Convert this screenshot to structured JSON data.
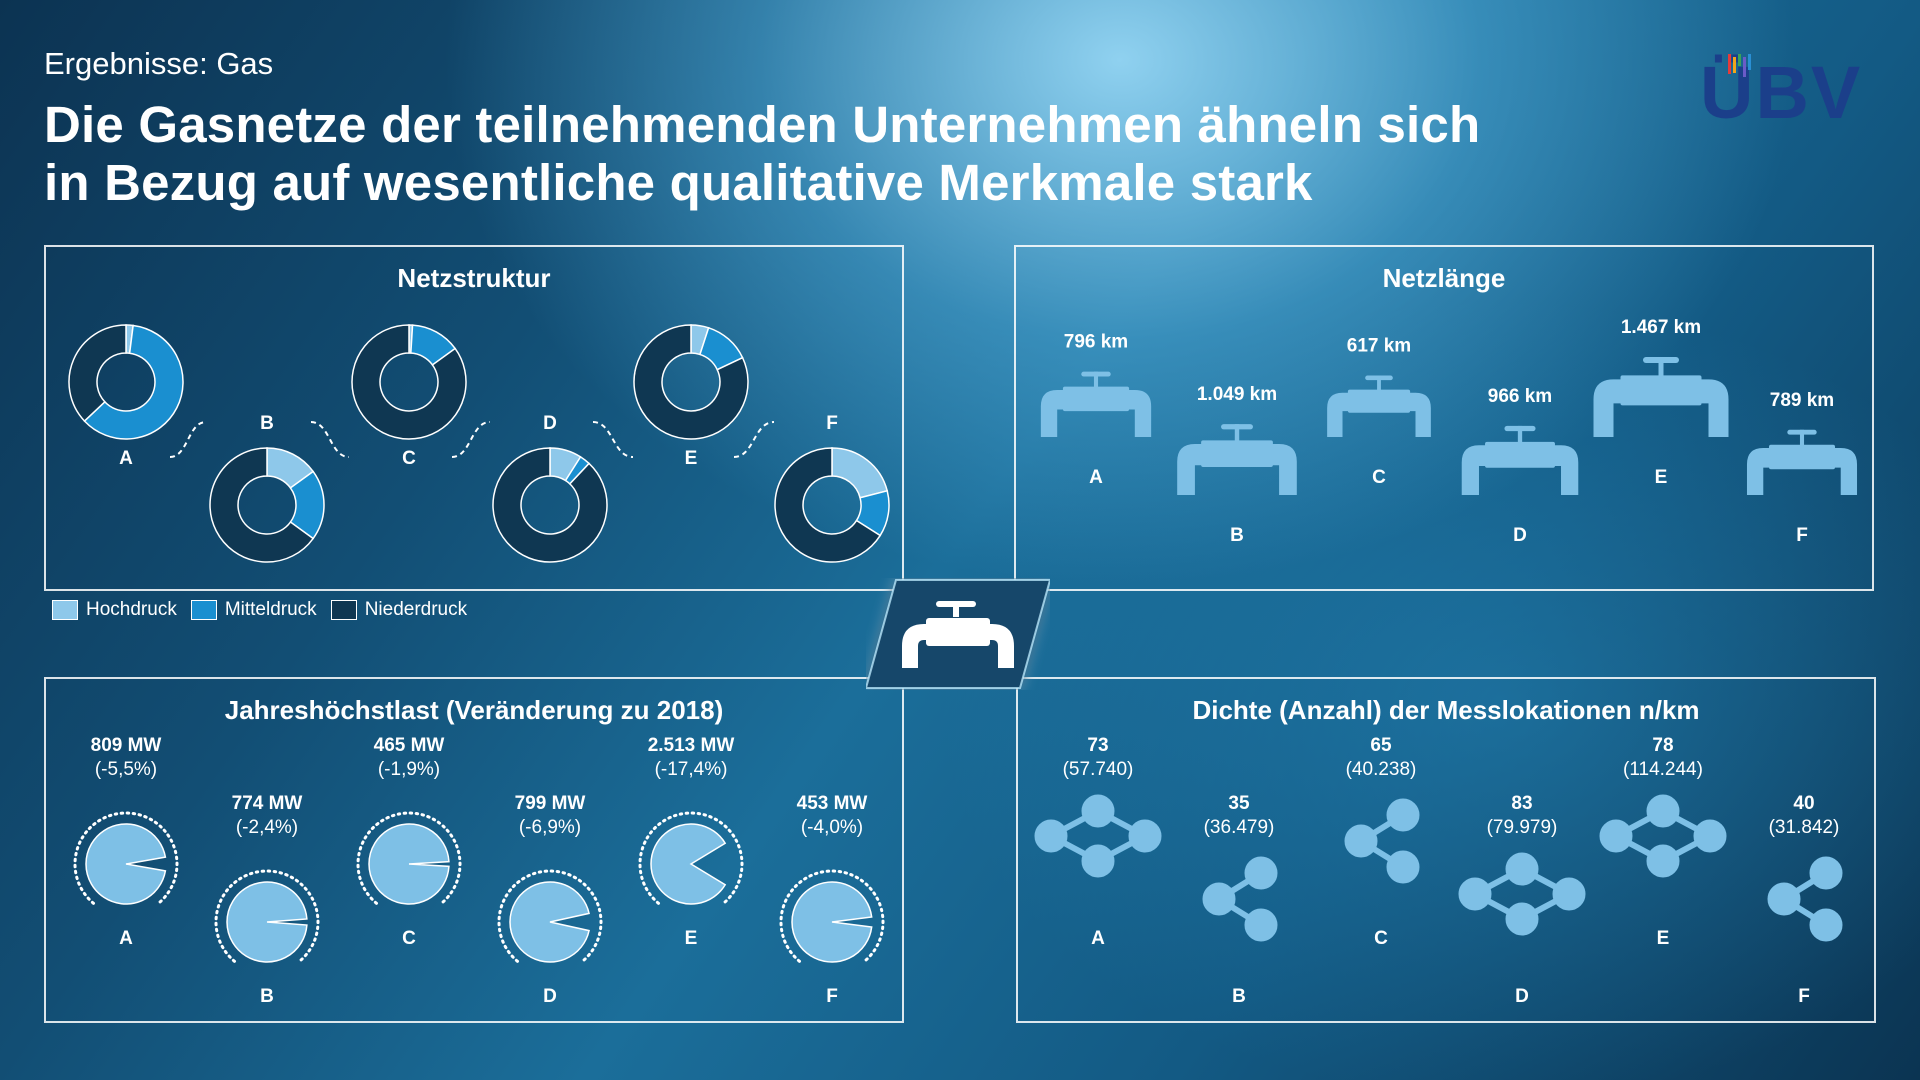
{
  "header": {
    "subtitle": "Ergebnisse: Gas",
    "title_line1": "Die Gasnetze der teilnehmenden Unternehmen ähneln sich",
    "title_line2": "in Bezug auf wesentliche qualitative Merkmale stark"
  },
  "logo": {
    "text": "ÜBV",
    "color": "#1b3f8a",
    "bar_colors": [
      "#e43b3b",
      "#f2a51a",
      "#3aa35a",
      "#6a5bc8",
      "#2a8fd4"
    ]
  },
  "colors": {
    "hochdruck": "#8ec8ea",
    "mitteldruck": "#1a8fd0",
    "niederdruck": "#0f3752",
    "icon": "#7ec0e6"
  },
  "legend": [
    "Hochdruck",
    "Mitteldruck",
    "Niederdruck"
  ],
  "chart_data": [
    {
      "type": "pie",
      "title": "Netzstruktur",
      "series_names": [
        "Hochdruck",
        "Mitteldruck",
        "Niederdruck"
      ],
      "items": [
        {
          "label": "A",
          "values": [
            2,
            61,
            37
          ]
        },
        {
          "label": "B",
          "values": [
            15,
            20,
            65
          ]
        },
        {
          "label": "C",
          "values": [
            1,
            14,
            85
          ]
        },
        {
          "label": "D",
          "values": [
            9,
            3,
            88
          ]
        },
        {
          "label": "E",
          "values": [
            5,
            13,
            82
          ]
        },
        {
          "label": "F",
          "values": [
            21,
            13,
            66
          ]
        }
      ]
    },
    {
      "type": "bar",
      "title": "Netzlänge",
      "unit": "km",
      "items": [
        {
          "label": "A",
          "value": 796,
          "text": "796 km"
        },
        {
          "label": "B",
          "value": 1049,
          "text": "1.049 km"
        },
        {
          "label": "C",
          "value": 617,
          "text": "617 km"
        },
        {
          "label": "D",
          "value": 966,
          "text": "966 km"
        },
        {
          "label": "E",
          "value": 1467,
          "text": "1.467 km"
        },
        {
          "label": "F",
          "value": 789,
          "text": "789 km"
        }
      ]
    },
    {
      "type": "pie",
      "title": "Jahreshöchstlast (Veränderung zu 2018)",
      "items": [
        {
          "label": "A",
          "value_text": "809 MW",
          "change_text": "(-5,5%)",
          "change_pct": -5.5
        },
        {
          "label": "B",
          "value_text": "774 MW",
          "change_text": "(-2,4%)",
          "change_pct": -2.4
        },
        {
          "label": "C",
          "value_text": "465 MW",
          "change_text": "(-1,9%)",
          "change_pct": -1.9
        },
        {
          "label": "D",
          "value_text": "799 MW",
          "change_text": "(-6,9%)",
          "change_pct": -6.9
        },
        {
          "label": "E",
          "value_text": "2.513 MW",
          "change_text": "(-17,4%)",
          "change_pct": -17.4
        },
        {
          "label": "F",
          "value_text": "453 MW",
          "change_text": "(-4,0%)",
          "change_pct": -4.0
        }
      ]
    },
    {
      "type": "table",
      "title": "Dichte (Anzahl) der Messlokationen n/km",
      "items": [
        {
          "label": "A",
          "density": "73",
          "count": "(57.740)",
          "icon": "network-icon"
        },
        {
          "label": "B",
          "density": "35",
          "count": "(36.479)",
          "icon": "share-icon"
        },
        {
          "label": "C",
          "density": "65",
          "count": "(40.238)",
          "icon": "share-icon"
        },
        {
          "label": "D",
          "density": "83",
          "count": "(79.979)",
          "icon": "network-icon"
        },
        {
          "label": "E",
          "density": "78",
          "count": "(114.244)",
          "icon": "network-icon"
        },
        {
          "label": "F",
          "density": "40",
          "count": "(31.842)",
          "icon": "share-icon"
        }
      ]
    }
  ]
}
